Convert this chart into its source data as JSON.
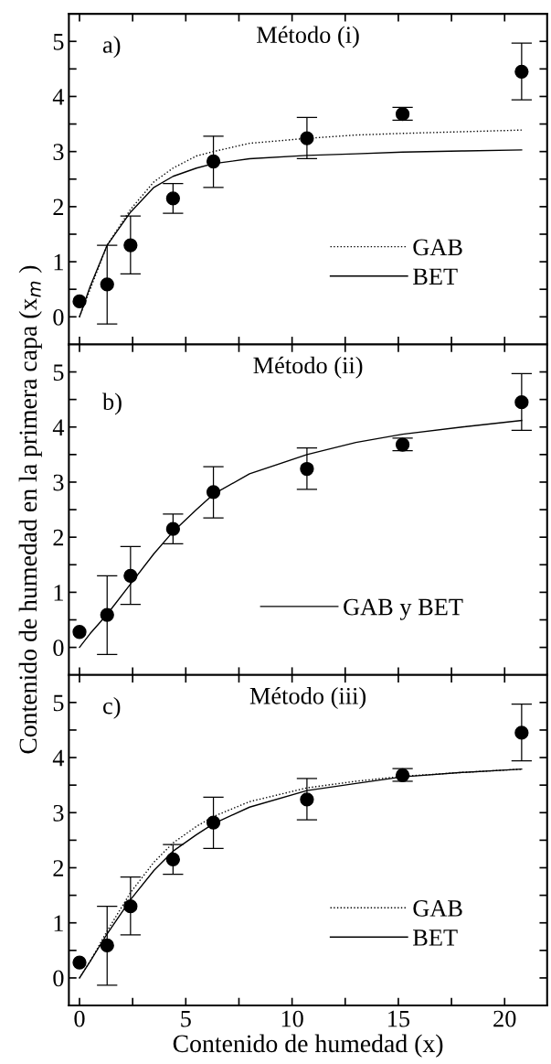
{
  "chart_data": [
    {
      "type": "scatter",
      "title": "Método (i)",
      "annotations": [
        "a)"
      ],
      "xlim": [
        -0.5,
        22
      ],
      "ylim": [
        -0.5,
        5.5
      ],
      "xticks": [
        0,
        {
          "value": 2.5,
          "label": null
        },
        5,
        {
          "value": 7.5,
          "label": null
        },
        10,
        {
          "value": 12.5,
          "label": null
        },
        15,
        {
          "value": 17.5,
          "label": null
        },
        20
      ],
      "yticks": [
        0,
        {
          "value": 0.5,
          "label": null
        },
        1,
        {
          "value": 1.5,
          "label": null
        },
        2,
        {
          "value": 2.5,
          "label": null
        },
        3,
        {
          "value": 3.5,
          "label": null
        },
        4,
        {
          "value": 4.5,
          "label": null
        },
        5
      ],
      "tick_labels": "y",
      "legend": "bottom right",
      "grid": false,
      "series": [
        {
          "color": "#000000",
          "marker": "circle",
          "x": [
            0,
            1.3,
            2.4,
            4.4,
            6.3,
            10.7,
            15.2,
            20.8
          ],
          "values": [
            0.28,
            0.59,
            1.3,
            2.15,
            2.82,
            3.24,
            3.68,
            4.45
          ],
          "errors": [
            null,
            [
              -0.13,
              1.3
            ],
            [
              0.78,
              1.83
            ],
            [
              1.88,
              2.42
            ],
            [
              2.35,
              3.28
            ],
            [
              2.87,
              3.62
            ],
            [
              3.57,
              3.8
            ],
            [
              3.94,
              4.97
            ]
          ]
        },
        {
          "type": "line",
          "name": "GAB",
          "color": "#000000",
          "line_style": "dotted",
          "x": [
            0,
            0.5,
            1.3,
            2.4,
            3.5,
            4.4,
            5.5,
            6.3,
            8,
            10.7,
            13,
            15.2,
            18,
            20.8
          ],
          "values": [
            0,
            0.5,
            1.3,
            1.95,
            2.45,
            2.7,
            2.92,
            3.0,
            3.15,
            3.24,
            3.3,
            3.33,
            3.36,
            3.39
          ]
        },
        {
          "type": "line",
          "name": "BET",
          "color": "#000000",
          "line_style": "solid",
          "x": [
            0,
            0.5,
            1.3,
            2.4,
            3.5,
            4.4,
            5.5,
            6.3,
            8,
            10.7,
            13,
            15.2,
            18,
            20.8
          ],
          "values": [
            0,
            0.55,
            1.3,
            1.9,
            2.35,
            2.55,
            2.7,
            2.78,
            2.87,
            2.93,
            2.96,
            2.99,
            3.01,
            3.03
          ]
        }
      ]
    },
    {
      "type": "scatter",
      "title": "Método (ii)",
      "annotations": [
        "b)"
      ],
      "ylabel": "Contenido de humedad en la primera capa (x$_{m}$ )",
      "xlim": [
        -0.5,
        22
      ],
      "ylim": [
        -0.5,
        5.5
      ],
      "xticks": [
        0,
        {
          "value": 2.5,
          "label": null
        },
        5,
        {
          "value": 7.5,
          "label": null
        },
        10,
        {
          "value": 12.5,
          "label": null
        },
        15,
        {
          "value": 17.5,
          "label": null
        },
        20
      ],
      "yticks": [
        0,
        {
          "value": 0.5,
          "label": null
        },
        1,
        {
          "value": 1.5,
          "label": null
        },
        2,
        {
          "value": 2.5,
          "label": null
        },
        3,
        {
          "value": 3.5,
          "label": null
        },
        4,
        {
          "value": 4.5,
          "label": null
        },
        5
      ],
      "tick_labels": "y",
      "legend": "bottom right",
      "grid": false,
      "series": [
        {
          "color": "#000000",
          "marker": "circle",
          "x": [
            0,
            1.3,
            2.4,
            4.4,
            6.3,
            10.7,
            15.2,
            20.8
          ],
          "values": [
            0.28,
            0.59,
            1.3,
            2.15,
            2.82,
            3.24,
            3.68,
            4.45
          ],
          "errors": [
            null,
            [
              -0.13,
              1.3
            ],
            [
              0.78,
              1.83
            ],
            [
              1.88,
              2.42
            ],
            [
              2.35,
              3.28
            ],
            [
              2.87,
              3.62
            ],
            [
              3.57,
              3.8
            ],
            [
              3.94,
              4.97
            ]
          ]
        },
        {
          "type": "line",
          "name": "GAB y BET",
          "color": "#000000",
          "line_style": "solid",
          "x": [
            0,
            0.5,
            1.3,
            2.4,
            3.5,
            4.4,
            5.5,
            6.3,
            8,
            10.7,
            13,
            15.2,
            18,
            20.8
          ],
          "values": [
            0,
            0.25,
            0.6,
            1.15,
            1.7,
            2.1,
            2.5,
            2.78,
            3.15,
            3.5,
            3.72,
            3.87,
            4.0,
            4.12
          ]
        }
      ]
    },
    {
      "type": "scatter",
      "title": "Método (iii)",
      "annotations": [
        "c)"
      ],
      "xlabel": "Contenido de humedad (x)",
      "xlim": [
        -0.5,
        22
      ],
      "ylim": [
        -0.5,
        5.5
      ],
      "xticks": [
        0,
        {
          "value": 2.5,
          "label": null
        },
        5,
        {
          "value": 7.5,
          "label": null
        },
        10,
        {
          "value": 12.5,
          "label": null
        },
        15,
        {
          "value": 17.5,
          "label": null
        },
        20
      ],
      "yticks": [
        0,
        {
          "value": 0.5,
          "label": null
        },
        1,
        {
          "value": 1.5,
          "label": null
        },
        2,
        {
          "value": 2.5,
          "label": null
        },
        3,
        {
          "value": 3.5,
          "label": null
        },
        4,
        {
          "value": 4.5,
          "label": null
        },
        5
      ],
      "legend": "bottom right",
      "grid": false,
      "series": [
        {
          "color": "#000000",
          "marker": "circle",
          "x": [
            0,
            1.3,
            2.4,
            4.4,
            6.3,
            10.7,
            15.2,
            20.8
          ],
          "values": [
            0.28,
            0.59,
            1.3,
            2.15,
            2.82,
            3.24,
            3.68,
            4.45
          ],
          "errors": [
            null,
            [
              -0.13,
              1.3
            ],
            [
              0.78,
              1.83
            ],
            [
              1.88,
              2.42
            ],
            [
              2.35,
              3.28
            ],
            [
              2.87,
              3.62
            ],
            [
              3.57,
              3.8
            ],
            [
              3.94,
              4.97
            ]
          ]
        },
        {
          "type": "line",
          "name": "GAB",
          "color": "#000000",
          "line_style": "dotted",
          "x": [
            0,
            0.5,
            1.3,
            2.4,
            3.5,
            4.4,
            5.5,
            6.3,
            8,
            10.7,
            13,
            15.2,
            18,
            20.8
          ],
          "values": [
            0,
            0.3,
            0.85,
            1.55,
            2.1,
            2.45,
            2.75,
            2.93,
            3.2,
            3.45,
            3.57,
            3.66,
            3.73,
            3.79
          ]
        },
        {
          "type": "line",
          "name": "BET",
          "color": "#000000",
          "line_style": "solid",
          "x": [
            0,
            0.5,
            1.3,
            2.4,
            3.5,
            4.4,
            5.5,
            6.3,
            8,
            10.7,
            13,
            15.2,
            18,
            20.8
          ],
          "values": [
            0,
            0.3,
            0.8,
            1.42,
            1.95,
            2.3,
            2.6,
            2.8,
            3.1,
            3.4,
            3.53,
            3.65,
            3.73,
            3.79
          ]
        }
      ]
    }
  ]
}
